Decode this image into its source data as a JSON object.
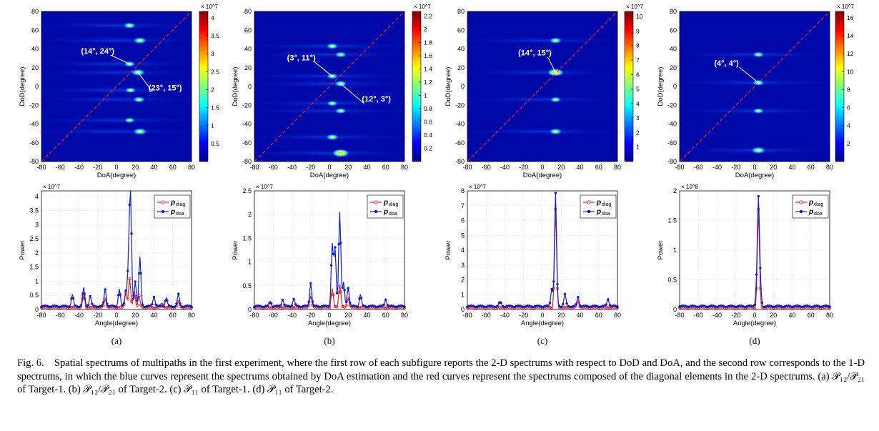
{
  "figure": {
    "caption": {
      "label": "Fig. 6.",
      "text": "Spatial spectrums of multipaths in the first experiment, where the first row of each subfigure reports the 2-D spectrums with respect to DoD and DoA, and the second row corresponds to the 1-D spectrums, in which the blue curves represent the spectrums obtained by DoA estimation and the red curves represent the spectrums composed of the diagonal elements in the 2-D spectrums. (a) 𝒫₁₂/𝒫₂₁ of Target-1. (b) 𝒫₁₂/𝒫₂₁ of Target-2. (c) 𝒫₁₁ of Target-1. (d) 𝒫₁₁ of Target-2."
    },
    "legend": {
      "diag": "p",
      "diag_sub": "diag",
      "doa": "p",
      "doa_sub": "doa"
    },
    "labels": {
      "doa": "DoA(degree)",
      "dod": "DoD(degree)",
      "angle": "Angle(degree)",
      "power": "Power"
    },
    "panels": [
      {
        "label": "(a)",
        "heatmap_scale": "× 10^7",
        "colorbar_ticks": [
          "0.5",
          "1",
          "1.5",
          "2",
          "2.5",
          "3",
          "3.5",
          "4"
        ],
        "annotations": [
          "(14°, 24°)",
          "(23°, 15°)"
        ],
        "spectrum_scale": "× 10^7",
        "spectrum_yticks": [
          "0",
          "0.5",
          "1",
          "1.5",
          "2",
          "2.5",
          "3",
          "3.5",
          "4"
        ]
      },
      {
        "label": "(b)",
        "heatmap_scale": "× 10^7",
        "colorbar_ticks": [
          "0.2",
          "0.4",
          "0.6",
          "0.8",
          "1",
          "1.2",
          "1.4",
          "1.6",
          "1.8",
          "2",
          "2.2"
        ],
        "annotations": [
          "(3°, 11°)",
          "(12°, 3°)"
        ],
        "spectrum_scale": "× 10^7",
        "spectrum_yticks": [
          "0",
          "0.5",
          "1",
          "1.5",
          "2",
          "2.5"
        ]
      },
      {
        "label": "(c)",
        "heatmap_scale": "× 10^7",
        "colorbar_ticks": [
          "1",
          "2",
          "3",
          "4",
          "5",
          "6",
          "7",
          "8",
          "9",
          "10"
        ],
        "annotations": [
          "(14°, 15°)"
        ],
        "spectrum_scale": "× 10^7",
        "spectrum_yticks": [
          "0",
          "1",
          "2",
          "3",
          "4",
          "5",
          "6",
          "7",
          "8"
        ]
      },
      {
        "label": "(d)",
        "heatmap_scale": "× 10^7",
        "colorbar_ticks": [
          "2",
          "4",
          "6",
          "8",
          "10",
          "12",
          "14",
          "16"
        ],
        "annotations": [
          "(4°, 4°)"
        ],
        "spectrum_scale": "× 10^8",
        "spectrum_yticks": [
          "0",
          "0.5",
          "1",
          "1.5",
          "2"
        ]
      }
    ],
    "angle_ticks": [
      "-80",
      "-60",
      "-40",
      "-20",
      "0",
      "20",
      "40",
      "60",
      "80"
    ],
    "chart_data": [
      {
        "type": "heatmap",
        "subfigure": "(a)",
        "xlabel": "DoA(degree)",
        "ylabel": "DoD(degree)",
        "xlim": [
          -80,
          80
        ],
        "ylim": [
          -80,
          80
        ],
        "clim": [
          0,
          43000000.0
        ],
        "peaks": [
          {
            "doa": 14,
            "dod": 65,
            "v": 0.55
          },
          {
            "doa": 25,
            "dod": 49,
            "v": 0.7
          },
          {
            "doa": 14,
            "dod": 24,
            "v": 0.45
          },
          {
            "doa": 23,
            "dod": 15,
            "v": 0.8
          },
          {
            "doa": 15,
            "dod": -4,
            "v": 0.4
          },
          {
            "doa": 24,
            "dod": -14,
            "v": 0.5
          },
          {
            "doa": 14,
            "dod": -36,
            "v": 0.35
          },
          {
            "doa": 25,
            "dod": -48,
            "v": 0.75
          }
        ]
      },
      {
        "type": "heatmap",
        "subfigure": "(b)",
        "xlabel": "DoA(degree)",
        "ylabel": "DoD(degree)",
        "xlim": [
          -80,
          80
        ],
        "ylim": [
          -80,
          80
        ],
        "clim": [
          0,
          24000000.0
        ],
        "peaks": [
          {
            "doa": 3,
            "dod": 43,
            "v": 0.5
          },
          {
            "doa": 12,
            "dod": 34,
            "v": 0.45
          },
          {
            "doa": 3,
            "dod": 11,
            "v": 0.45
          },
          {
            "doa": 12,
            "dod": 3,
            "v": 0.6
          },
          {
            "doa": 3,
            "dod": -18,
            "v": 0.4
          },
          {
            "doa": 12,
            "dod": -26,
            "v": 0.45
          },
          {
            "doa": 3,
            "dod": -54,
            "v": 0.6
          },
          {
            "doa": 12,
            "dod": -71,
            "v": 1.0
          }
        ]
      },
      {
        "type": "heatmap",
        "subfigure": "(c)",
        "xlabel": "DoA(degree)",
        "ylabel": "DoD(degree)",
        "xlim": [
          -80,
          80
        ],
        "ylim": [
          -80,
          80
        ],
        "clim": [
          0,
          105000000.0
        ],
        "peaks": [
          {
            "doa": 14,
            "dod": 49,
            "v": 0.55
          },
          {
            "doa": 14,
            "dod": 15,
            "v": 0.9
          },
          {
            "doa": 14,
            "dod": -14,
            "v": 0.4
          },
          {
            "doa": 14,
            "dod": -48,
            "v": 0.6
          }
        ]
      },
      {
        "type": "heatmap",
        "subfigure": "(d)",
        "xlabel": "DoA(degree)",
        "ylabel": "DoD(degree)",
        "xlim": [
          -80,
          80
        ],
        "ylim": [
          -80,
          80
        ],
        "clim": [
          0,
          170000000.0
        ],
        "peaks": [
          {
            "doa": 4,
            "dod": 34,
            "v": 0.45
          },
          {
            "doa": 4,
            "dod": 4,
            "v": 0.55
          },
          {
            "doa": 4,
            "dod": -26,
            "v": 0.4
          },
          {
            "doa": 4,
            "dod": -68,
            "v": 0.85
          }
        ]
      },
      {
        "type": "line",
        "subfigure": "(a)",
        "xlabel": "Angle(degree)",
        "ylabel": "Power",
        "xlim": [
          -80,
          80
        ],
        "ylim": [
          0,
          42000000.0
        ],
        "series": [
          {
            "name": "p_diag",
            "color": "#e02020",
            "peaks": [
              [
                -35,
                0.45
              ],
              [
                -12,
                0.3
              ],
              [
                10,
                0.55
              ],
              [
                14,
                1.0
              ],
              [
                19,
                0.6
              ],
              [
                24,
                0.4
              ],
              [
                49,
                0.15
              ],
              [
                66,
                0.2
              ]
            ]
          },
          {
            "name": "p_doa",
            "color": "#1020d0",
            "peaks": [
              [
                -47,
                0.4
              ],
              [
                -35,
                0.65
              ],
              [
                -28,
                0.35
              ],
              [
                -12,
                0.6
              ],
              [
                3,
                0.6
              ],
              [
                10,
                0.55
              ],
              [
                13,
                1.6
              ],
              [
                15,
                3.8
              ],
              [
                20,
                0.9
              ],
              [
                25,
                1.73
              ],
              [
                40,
                0.35
              ],
              [
                53,
                0.3
              ],
              [
                66,
                0.42
              ]
            ]
          }
        ]
      },
      {
        "type": "line",
        "subfigure": "(b)",
        "xlabel": "Angle(degree)",
        "ylabel": "Power",
        "xlim": [
          -80,
          80
        ],
        "ylim": [
          0,
          25000000.0
        ],
        "series": [
          {
            "name": "p_diag",
            "color": "#e02020",
            "peaks": [
              [
                -20,
                0.25
              ],
              [
                3,
                0.4
              ],
              [
                11,
                0.5
              ],
              [
                20,
                0.2
              ]
            ]
          },
          {
            "name": "p_doa",
            "color": "#1020d0",
            "peaks": [
              [
                -63,
                0.1
              ],
              [
                -50,
                0.15
              ],
              [
                -38,
                0.15
              ],
              [
                -20,
                0.5
              ],
              [
                3,
                1.3
              ],
              [
                6,
                1.2
              ],
              [
                11,
                2.0
              ],
              [
                15,
                0.5
              ],
              [
                20,
                0.4
              ],
              [
                33,
                0.25
              ],
              [
                60,
                0.15
              ]
            ]
          }
        ]
      },
      {
        "type": "line",
        "subfigure": "(c)",
        "xlabel": "Angle(degree)",
        "ylabel": "Power",
        "xlim": [
          -80,
          80
        ],
        "ylim": [
          0,
          80000000.0
        ],
        "series": [
          {
            "name": "p_diag",
            "color": "#e02020",
            "peaks": [
              [
                14,
                6.6
              ],
              [
                38,
                0.4
              ]
            ]
          },
          {
            "name": "p_doa",
            "color": "#1020d0",
            "peaks": [
              [
                -45,
                0.3
              ],
              [
                10,
                1.2
              ],
              [
                14,
                7.6
              ],
              [
                24,
                0.8
              ],
              [
                38,
                0.6
              ],
              [
                70,
                0.5
              ]
            ]
          }
        ]
      },
      {
        "type": "line",
        "subfigure": "(d)",
        "xlabel": "Angle(degree)",
        "ylabel": "Power",
        "xlim": [
          -80,
          80
        ],
        "ylim": [
          0,
          200000000.0
        ],
        "series": [
          {
            "name": "p_diag",
            "color": "#e02020",
            "peaks": [
              [
                4,
                1.65
              ]
            ]
          },
          {
            "name": "p_doa",
            "color": "#1020d0",
            "peaks": [
              [
                2,
                0.2
              ],
              [
                4,
                1.75
              ],
              [
                6,
                0.3
              ]
            ]
          }
        ]
      }
    ]
  }
}
